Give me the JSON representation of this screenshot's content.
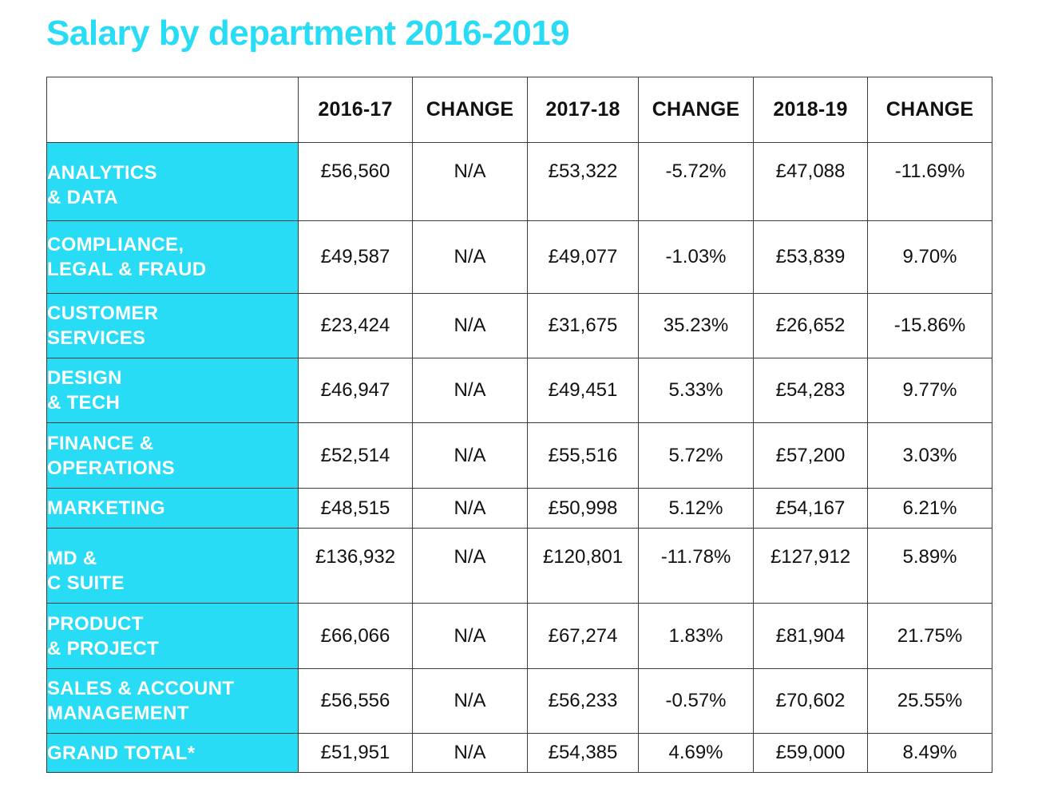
{
  "chart_data": {
    "type": "table",
    "title": "Salary by department 2016-2019",
    "columns": [
      "",
      "2016-17",
      "CHANGE",
      "2017-18",
      "CHANGE",
      "2018-19",
      "CHANGE"
    ],
    "rows": [
      {
        "department": [
          "ANALYTICS",
          "& DATA"
        ],
        "cells": [
          "£56,560",
          "N/A",
          "£53,322",
          "-5.72%",
          "£47,088",
          "-11.69%"
        ]
      },
      {
        "department": [
          "COMPLIANCE,",
          "LEGAL & FRAUD"
        ],
        "cells": [
          "£49,587",
          "N/A",
          "£49,077",
          "-1.03%",
          "£53,839",
          "9.70%"
        ]
      },
      {
        "department": [
          "CUSTOMER",
          "SERVICES"
        ],
        "cells": [
          "£23,424",
          "N/A",
          "£31,675",
          "35.23%",
          "£26,652",
          "-15.86%"
        ]
      },
      {
        "department": [
          "DESIGN",
          "& TECH"
        ],
        "cells": [
          "£46,947",
          "N/A",
          "£49,451",
          "5.33%",
          "£54,283",
          "9.77%"
        ]
      },
      {
        "department": [
          "FINANCE &",
          "OPERATIONS"
        ],
        "cells": [
          "£52,514",
          "N/A",
          "£55,516",
          "5.72%",
          "£57,200",
          "3.03%"
        ]
      },
      {
        "department": [
          "MARKETING"
        ],
        "cells": [
          "£48,515",
          "N/A",
          "£50,998",
          "5.12%",
          "£54,167",
          "6.21%"
        ]
      },
      {
        "department": [
          "MD &",
          "C SUITE"
        ],
        "cells": [
          "£136,932",
          "N/A",
          "£120,801",
          "-11.78%",
          "£127,912",
          "5.89%"
        ]
      },
      {
        "department": [
          "PRODUCT",
          "& PROJECT"
        ],
        "cells": [
          "£66,066",
          "N/A",
          "£67,274",
          "1.83%",
          "£81,904",
          "21.75%"
        ]
      },
      {
        "department": [
          "SALES & ACCOUNT",
          "MANAGEMENT"
        ],
        "cells": [
          "£56,556",
          "N/A",
          "£56,233",
          "-0.57%",
          "£70,602",
          "25.55%"
        ]
      },
      {
        "department": [
          "GRAND TOTAL*"
        ],
        "cells": [
          "£51,951",
          "N/A",
          "£54,385",
          "4.69%",
          "£59,000",
          "8.49%"
        ]
      }
    ]
  },
  "colors": {
    "accent": "#27dcf4",
    "grid": "#3a3a3a",
    "text": "#111111",
    "dept_text": "#ffffff"
  }
}
